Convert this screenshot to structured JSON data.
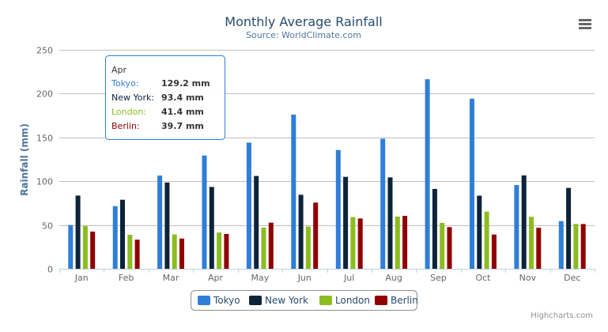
{
  "chart_data": {
    "type": "bar",
    "title": "Monthly Average Rainfall",
    "subtitle": "Source: WorldClimate.com",
    "xlabel": "",
    "ylabel": "Rainfall (mm)",
    "ylim": [
      0,
      250
    ],
    "yticks": [
      0,
      50,
      100,
      150,
      200,
      250
    ],
    "grid": true,
    "legend_placement": "bottom",
    "categories": [
      "Jan",
      "Feb",
      "Mar",
      "Apr",
      "May",
      "Jun",
      "Jul",
      "Aug",
      "Sep",
      "Oct",
      "Nov",
      "Dec"
    ],
    "series": [
      {
        "name": "Tokyo",
        "color": "#2f7ed8",
        "values": [
          49.9,
          71.5,
          106.4,
          129.2,
          144.0,
          176.0,
          135.6,
          148.5,
          216.4,
          194.1,
          95.6,
          54.4
        ]
      },
      {
        "name": "New York",
        "color": "#0d233a",
        "values": [
          83.6,
          78.8,
          98.5,
          93.4,
          106.0,
          84.5,
          105.0,
          104.3,
          91.2,
          83.5,
          106.6,
          92.3
        ]
      },
      {
        "name": "London",
        "color": "#8bbc21",
        "values": [
          48.9,
          38.8,
          39.3,
          41.4,
          47.0,
          48.3,
          59.0,
          59.6,
          52.4,
          65.2,
          59.3,
          51.2
        ]
      },
      {
        "name": "Berlin",
        "color": "#910000",
        "values": [
          42.4,
          33.2,
          34.5,
          39.7,
          52.6,
          75.5,
          57.4,
          60.4,
          47.6,
          39.1,
          46.8,
          51.1
        ]
      }
    ],
    "tooltip": {
      "header": "Apr",
      "rows": [
        {
          "label": "Tokyo:",
          "value": "129.2 mm",
          "color": "#2f7ed8"
        },
        {
          "label": "New York:",
          "value": "93.4 mm",
          "color": "#0d233a"
        },
        {
          "label": "London:",
          "value": "41.4 mm",
          "color": "#8bbc21"
        },
        {
          "label": "Berlin:",
          "value": "39.7 mm",
          "color": "#910000"
        }
      ]
    }
  },
  "credits": "Highcharts.com",
  "menu_icon": "hamburger-menu-icon"
}
